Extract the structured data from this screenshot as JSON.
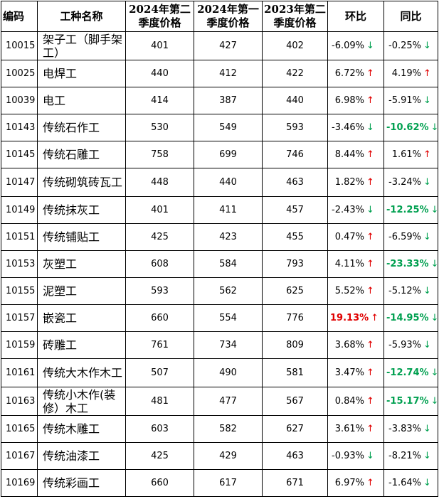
{
  "headers": {
    "code": "编码",
    "name": "工种名称",
    "q2_2024": "2024年第二季度价格",
    "q1_2024": "2024年第一季度价格",
    "q2_2023": "2023年第二季度价格",
    "hb": "环比",
    "tb": "同比"
  },
  "arrows": {
    "up": "↑",
    "down": "↓"
  },
  "colors": {
    "up": "#e00000",
    "down": "#00a050",
    "highlight_red": "#e00000",
    "highlight_green": "#00a050"
  },
  "rows": [
    {
      "code": "10015",
      "name": "架子工（脚手架工）",
      "q2_2024": "401",
      "q1_2024": "427",
      "q2_2023": "402",
      "hb": "-6.09%",
      "hb_dir": "down",
      "tb": "-0.25%",
      "tb_dir": "down"
    },
    {
      "code": "10025",
      "name": "电焊工",
      "q2_2024": "440",
      "q1_2024": "412",
      "q2_2023": "422",
      "hb": "6.72%",
      "hb_dir": "up",
      "tb": "4.19%",
      "tb_dir": "up"
    },
    {
      "code": "10039",
      "name": "电工",
      "q2_2024": "414",
      "q1_2024": "387",
      "q2_2023": "440",
      "hb": "6.98%",
      "hb_dir": "up",
      "tb": "-5.91%",
      "tb_dir": "down"
    },
    {
      "code": "10143",
      "name": "传统石作工",
      "q2_2024": "530",
      "q1_2024": "549",
      "q2_2023": "593",
      "hb": "-3.46%",
      "hb_dir": "down",
      "tb": "-10.62%",
      "tb_dir": "down",
      "tb_hl": "green"
    },
    {
      "code": "10145",
      "name": "传统石雕工",
      "q2_2024": "758",
      "q1_2024": "699",
      "q2_2023": "746",
      "hb": "8.44%",
      "hb_dir": "up",
      "tb": "1.61%",
      "tb_dir": "up"
    },
    {
      "code": "10147",
      "name": "传统砌筑砖瓦工",
      "q2_2024": "448",
      "q1_2024": "440",
      "q2_2023": "463",
      "hb": "1.82%",
      "hb_dir": "up",
      "tb": "-3.24%",
      "tb_dir": "down"
    },
    {
      "code": "10149",
      "name": "传统抹灰工",
      "q2_2024": "401",
      "q1_2024": "411",
      "q2_2023": "457",
      "hb": "-2.43%",
      "hb_dir": "down",
      "tb": "-12.25%",
      "tb_dir": "down",
      "tb_hl": "green"
    },
    {
      "code": "10151",
      "name": "传统铺贴工",
      "q2_2024": "425",
      "q1_2024": "423",
      "q2_2023": "455",
      "hb": "0.47%",
      "hb_dir": "up",
      "tb": "-6.59%",
      "tb_dir": "down"
    },
    {
      "code": "10153",
      "name": "灰塑工",
      "q2_2024": "608",
      "q1_2024": "584",
      "q2_2023": "793",
      "hb": "4.11%",
      "hb_dir": "up",
      "tb": "-23.33%",
      "tb_dir": "down",
      "tb_hl": "green"
    },
    {
      "code": "10155",
      "name": "泥塑工",
      "q2_2024": "593",
      "q1_2024": "562",
      "q2_2023": "625",
      "hb": "5.52%",
      "hb_dir": "up",
      "tb": "-5.12%",
      "tb_dir": "down"
    },
    {
      "code": "10157",
      "name": "嵌瓷工",
      "q2_2024": "660",
      "q1_2024": "554",
      "q2_2023": "776",
      "hb": "19.13%",
      "hb_dir": "up",
      "hb_hl": "red",
      "tb": "-14.95%",
      "tb_dir": "down",
      "tb_hl": "green"
    },
    {
      "code": "10159",
      "name": "砖雕工",
      "q2_2024": "761",
      "q1_2024": "734",
      "q2_2023": "809",
      "hb": "3.68%",
      "hb_dir": "up",
      "tb": "-5.93%",
      "tb_dir": "down"
    },
    {
      "code": "10161",
      "name": "传统大木作木工",
      "q2_2024": "507",
      "q1_2024": "490",
      "q2_2023": "581",
      "hb": "3.47%",
      "hb_dir": "up",
      "tb": "-12.74%",
      "tb_dir": "down",
      "tb_hl": "green"
    },
    {
      "code": "10163",
      "name": "传统小木作(装修）木工",
      "q2_2024": "481",
      "q1_2024": "477",
      "q2_2023": "567",
      "hb": "0.84%",
      "hb_dir": "up",
      "tb": "-15.17%",
      "tb_dir": "down",
      "tb_hl": "green"
    },
    {
      "code": "10165",
      "name": "传统木雕工",
      "q2_2024": "603",
      "q1_2024": "582",
      "q2_2023": "627",
      "hb": "3.61%",
      "hb_dir": "up",
      "tb": "-3.83%",
      "tb_dir": "down"
    },
    {
      "code": "10167",
      "name": "传统油漆工",
      "q2_2024": "425",
      "q1_2024": "429",
      "q2_2023": "463",
      "hb": "-0.93%",
      "hb_dir": "down",
      "tb": "-8.21%",
      "tb_dir": "down"
    },
    {
      "code": "10169",
      "name": "传统彩画工",
      "q2_2024": "660",
      "q1_2024": "617",
      "q2_2023": "671",
      "hb": "6.97%",
      "hb_dir": "up",
      "tb": "-1.64%",
      "tb_dir": "down"
    }
  ]
}
